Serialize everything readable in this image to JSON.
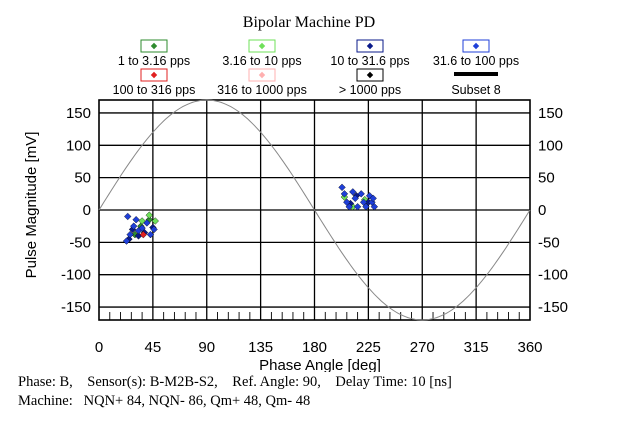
{
  "chart_data": {
    "type": "scatter",
    "title": "Bipolar Machine PD",
    "xlabel": "Phase Angle [deg]",
    "ylabel": "Pulse Magnitude [mV]",
    "xlim": [
      0,
      360
    ],
    "ylim": [
      -170,
      170
    ],
    "xticks": [
      0,
      45,
      90,
      135,
      180,
      225,
      270,
      315,
      360
    ],
    "yticks": [
      150,
      100,
      50,
      0,
      -50,
      -100,
      -150
    ],
    "grid": true,
    "reference_sine": {
      "amplitude_mv": 170,
      "description": "reference voltage sine"
    },
    "legend": [
      {
        "label": "1 to 3.16 pps",
        "color": "#2e8b2e"
      },
      {
        "label": "3.16 to 10 pps",
        "color": "#6fe05a"
      },
      {
        "label": "10 to 31.6 pps",
        "color": "#0a1a8a"
      },
      {
        "label": "31.6 to 100 pps",
        "color": "#1f3fd8"
      },
      {
        "label": "100 to 316 pps",
        "color": "#e02020"
      },
      {
        "label": "316 to 1000 pps",
        "color": "#ffb0b0"
      },
      {
        "label": "> 1000 pps",
        "color": "#000000"
      },
      {
        "label": "Subset 8",
        "color": "#000000",
        "is_line": true
      }
    ],
    "series": [
      {
        "name": "1 to 3.16 pps",
        "color": "#2e8b2e",
        "points": [
          [
            35,
            -25
          ],
          [
            42,
            -15
          ],
          [
            30,
            -38
          ]
        ]
      },
      {
        "name": "3.16 to 10 pps",
        "color": "#6fe05a",
        "points": [
          [
            36,
            -17
          ],
          [
            42,
            -8
          ],
          [
            47,
            -17
          ],
          [
            212,
            5
          ],
          [
            205,
            20
          ],
          [
            222,
            16
          ]
        ]
      },
      {
        "name": "10 to 31.6 pps",
        "color": "#0a1a8a",
        "points": [
          [
            25,
            -45
          ],
          [
            28,
            -30
          ],
          [
            33,
            -40
          ],
          [
            38,
            -35
          ],
          [
            45,
            -27
          ],
          [
            210,
            10
          ],
          [
            215,
            22
          ],
          [
            225,
            12
          ]
        ]
      },
      {
        "name": "31.6 to 100 pps",
        "color": "#1f3fd8",
        "points": [
          [
            23,
            -48
          ],
          [
            26,
            -38
          ],
          [
            29,
            -25
          ],
          [
            31,
            -15
          ],
          [
            33,
            -32
          ],
          [
            36,
            -28
          ],
          [
            40,
            -20
          ],
          [
            43,
            -38
          ],
          [
            46,
            -30
          ],
          [
            24,
            -10
          ],
          [
            203,
            35
          ],
          [
            205,
            25
          ],
          [
            207,
            12
          ],
          [
            209,
            5
          ],
          [
            212,
            28
          ],
          [
            214,
            18
          ],
          [
            216,
            5
          ],
          [
            219,
            25
          ],
          [
            221,
            12
          ],
          [
            223,
            5
          ],
          [
            226,
            22
          ],
          [
            228,
            12
          ],
          [
            230,
            5
          ],
          [
            229,
            18
          ]
        ]
      },
      {
        "name": "100 to 316 pps",
        "color": "#e02020",
        "points": [
          [
            37,
            -38
          ]
        ]
      }
    ]
  },
  "footer": {
    "line1": "Phase: B,    Sensor(s): B-M2B-S2,    Ref. Angle: 90,    Delay Time: 10 [ns]",
    "line2": "Machine:   NQN+ 84, NQN- 86, Qm+ 48, Qm- 48"
  }
}
